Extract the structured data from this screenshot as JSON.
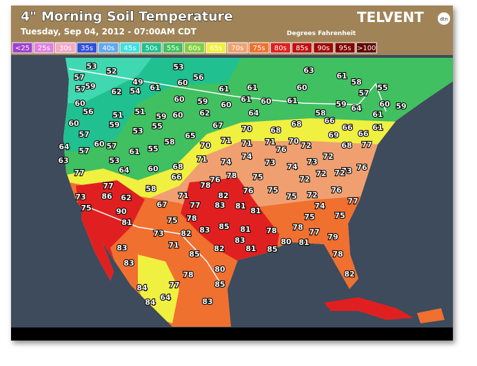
{
  "header": {
    "title": "4\" Morning Soil Temperature",
    "subtitle": "Tuesday, Sep 04, 2012 - 07:00AM CDT",
    "units": "Degrees Fahrenheit",
    "brand": "TELVENT",
    "brand_badge": "dtn"
  },
  "legend": [
    {
      "label": "<25",
      "color": "#a040d0"
    },
    {
      "label": "25s",
      "color": "#e080e0"
    },
    {
      "label": "30s",
      "color": "#f4a8c8"
    },
    {
      "label": "35s",
      "color": "#3050e0"
    },
    {
      "label": "40s",
      "color": "#60a8f0"
    },
    {
      "label": "45s",
      "color": "#40e0e0"
    },
    {
      "label": "50s",
      "color": "#20c090"
    },
    {
      "label": "55s",
      "color": "#40c060"
    },
    {
      "label": "60s",
      "color": "#80d040"
    },
    {
      "label": "65s",
      "color": "#f0f040"
    },
    {
      "label": "70s",
      "color": "#f0a070"
    },
    {
      "label": "75s",
      "color": "#f07030"
    },
    {
      "label": "80s",
      "color": "#e02020"
    },
    {
      "label": "85s",
      "color": "#c01010"
    },
    {
      "label": "90s",
      "color": "#a00808"
    },
    {
      "label": "95s",
      "color": "#800000"
    },
    {
      "label": ">100",
      "color": "#600000"
    }
  ],
  "stations": [
    53,
    52,
    53,
    56,
    63,
    61,
    58,
    57,
    60,
    49,
    61,
    61,
    61,
    60,
    55,
    57,
    59,
    62,
    54,
    57,
    60,
    60,
    59,
    60,
    61,
    60,
    61,
    59,
    64,
    60,
    59,
    56,
    51,
    51,
    59,
    60,
    62,
    64,
    58,
    61,
    60,
    59,
    53,
    55,
    67,
    70,
    68,
    68,
    66,
    66,
    61,
    57,
    65,
    69,
    66,
    64,
    60,
    57,
    61,
    55,
    58,
    70,
    71,
    71,
    71,
    76,
    70,
    72,
    68,
    77,
    57,
    63,
    53,
    71,
    74,
    74,
    73,
    74,
    73,
    72,
    73,
    76,
    77,
    64,
    60,
    68,
    66,
    76,
    78,
    75,
    72,
    72,
    72,
    77,
    58,
    78,
    82,
    76,
    75,
    76,
    73,
    86,
    62,
    71,
    75,
    72,
    75,
    67,
    77,
    83,
    81,
    81,
    74,
    77,
    90,
    75,
    81,
    75,
    78,
    75,
    73,
    82,
    83,
    85,
    81,
    78,
    78,
    77,
    79,
    83,
    71,
    82,
    81,
    85,
    80,
    81,
    83,
    85,
    78,
    83,
    80,
    78,
    82,
    77,
    85,
    84,
    64,
    84,
    83
  ]
}
